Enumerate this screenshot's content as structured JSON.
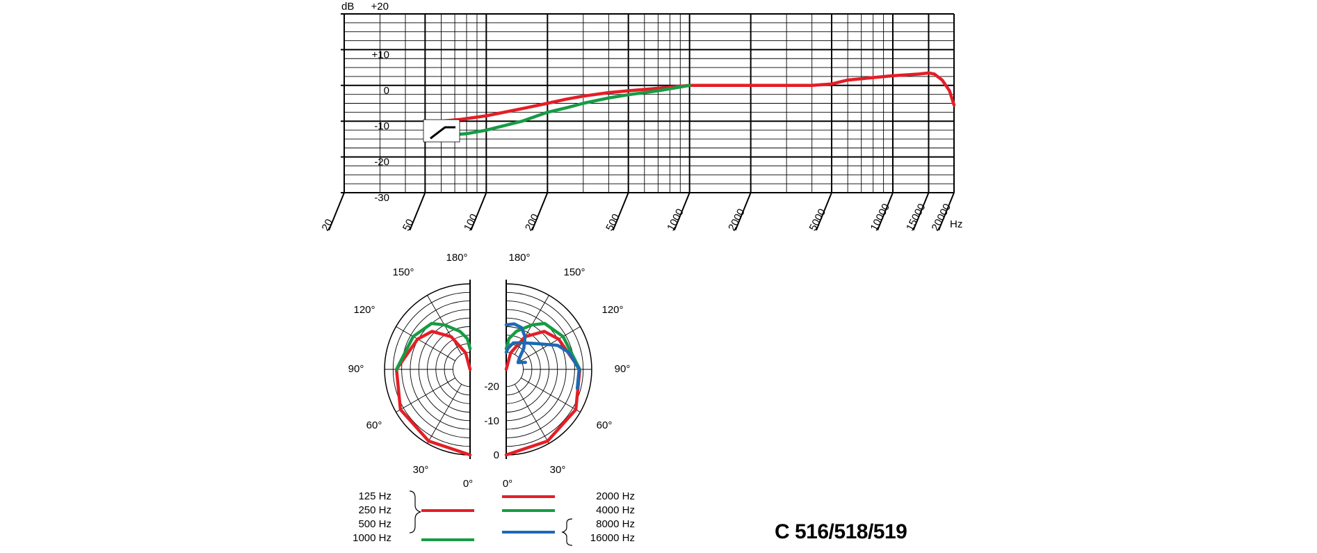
{
  "title": "C 516/518/519",
  "chart_data": [
    {
      "type": "line",
      "x_scale": "log",
      "xlim": [
        20,
        20000
      ],
      "ylim": [
        -30,
        20
      ],
      "x_ticks": [
        20,
        50,
        100,
        200,
        500,
        1000,
        2000,
        5000,
        10000,
        15000,
        20000
      ],
      "x_tick_labels": [
        "20",
        "50",
        "100",
        "200",
        "500",
        "1000",
        "2000",
        "5000",
        "10000",
        "15000",
        "20000"
      ],
      "x_unit": "Hz",
      "y_ticks": [
        20,
        10,
        0,
        -10,
        -20,
        -30
      ],
      "y_tick_labels": [
        "+20",
        "+10",
        "0",
        "-10",
        "-20",
        "-30"
      ],
      "y_unit": "dB",
      "grid": true,
      "series": [
        {
          "color": "#e41e26",
          "points": [
            [
              50,
              -10
            ],
            [
              60,
              -10
            ],
            [
              75,
              -9.5
            ],
            [
              100,
              -8.5
            ],
            [
              150,
              -6.5
            ],
            [
              200,
              -5
            ],
            [
              250,
              -3.8
            ],
            [
              300,
              -3
            ],
            [
              400,
              -2
            ],
            [
              500,
              -1.5
            ],
            [
              700,
              -0.8
            ],
            [
              1000,
              0
            ],
            [
              1500,
              0
            ],
            [
              2000,
              0
            ],
            [
              3000,
              0
            ],
            [
              4000,
              0
            ],
            [
              5000,
              0.4
            ],
            [
              6000,
              1.5
            ],
            [
              8000,
              2.2
            ],
            [
              10000,
              2.7
            ],
            [
              12000,
              3
            ],
            [
              13500,
              3.2
            ],
            [
              15000,
              3.5
            ],
            [
              16000,
              3.2
            ],
            [
              17500,
              1.5
            ],
            [
              19000,
              -1.5
            ],
            [
              20000,
              -5.5
            ]
          ]
        },
        {
          "color": "#169c45",
          "points": [
            [
              50,
              -14
            ],
            [
              60,
              -14
            ],
            [
              80,
              -13.5
            ],
            [
              100,
              -12.5
            ],
            [
              150,
              -10
            ],
            [
              200,
              -7.5
            ],
            [
              250,
              -6.2
            ],
            [
              300,
              -5
            ],
            [
              400,
              -3.5
            ],
            [
              500,
              -2.6
            ],
            [
              700,
              -1.5
            ],
            [
              1000,
              0
            ]
          ]
        }
      ],
      "inset_filter_icon": "highpass-filter-icon"
    },
    {
      "type": "polar",
      "angle_ticks": [
        0,
        30,
        60,
        90,
        120,
        150,
        180
      ],
      "angle_tick_labels": [
        "0°",
        "30°",
        "60°",
        "90°",
        "120°",
        "150°",
        "180°"
      ],
      "radial_ticks": [
        0,
        -10,
        -20
      ],
      "radial_tick_labels": [
        "0",
        "-10",
        "-20"
      ],
      "rlim": [
        -25,
        0
      ],
      "left_half": [
        {
          "color": "#e41e26",
          "points": [
            [
              0,
              0
            ],
            [
              30,
              -0.8
            ],
            [
              60,
              -1.5
            ],
            [
              90,
              -3.5
            ],
            [
              120,
              -7.3
            ],
            [
              135,
              -9.3
            ],
            [
              150,
              -14
            ],
            [
              165,
              -20
            ],
            [
              180,
              -25
            ]
          ]
        },
        {
          "color": "#169c45",
          "points": [
            [
              90,
              -3.5
            ],
            [
              120,
              -5.8
            ],
            [
              140,
              -7.5
            ],
            [
              150,
              -10
            ],
            [
              165,
              -13.5
            ],
            [
              175,
              -16
            ],
            [
              180,
              -19
            ]
          ]
        }
      ],
      "right_half": [
        {
          "color": "#e41e26",
          "points": [
            [
              0,
              0
            ],
            [
              30,
              -0.8
            ],
            [
              60,
              -1.5
            ],
            [
              90,
              -3.5
            ],
            [
              120,
              -7.3
            ],
            [
              135,
              -9.3
            ],
            [
              150,
              -14
            ],
            [
              165,
              -20
            ],
            [
              180,
              -25
            ]
          ]
        },
        {
          "color": "#169c45",
          "points": [
            [
              90,
              -3.5
            ],
            [
              120,
              -5.8
            ],
            [
              140,
              -7.5
            ],
            [
              150,
              -10
            ],
            [
              165,
              -13.5
            ],
            [
              175,
              -16
            ],
            [
              180,
              -19
            ]
          ]
        },
        {
          "color": "#1c69b5",
          "points": [
            [
              75,
              -3.5
            ],
            [
              90,
              -3.7
            ],
            [
              105,
              -6
            ],
            [
              115,
              -8.4
            ],
            [
              130,
              -13.3
            ],
            [
              150,
              -16
            ],
            [
              165,
              -17
            ],
            [
              175,
              -18.8
            ],
            [
              180,
              -20
            ]
          ],
          "points_b": [
            [
              180,
              -12
            ],
            [
              170,
              -11.5
            ],
            [
              160,
              -12
            ],
            [
              150,
              -14
            ],
            [
              140,
              -17
            ],
            [
              130,
              -20
            ],
            [
              120,
              -21
            ],
            [
              110,
              -19
            ]
          ]
        }
      ]
    }
  ],
  "legend": {
    "left_labels": [
      "125 Hz",
      "250 Hz",
      "500 Hz",
      "1000 Hz"
    ],
    "right_labels": [
      "2000 Hz",
      "4000 Hz",
      "8000 Hz",
      "16000 Hz"
    ],
    "colors": {
      "red": "#e41e26",
      "green": "#169c45",
      "blue": "#1c69b5"
    }
  }
}
